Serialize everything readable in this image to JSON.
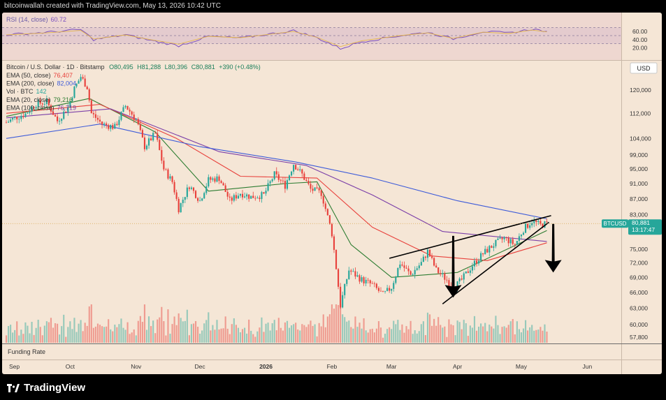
{
  "header": {
    "attribution": "bitcoinwallah created with TradingView.com, May 13, 2026 10:42 UTC"
  },
  "footer": {
    "brand": "TradingView"
  },
  "currency_label": "USD",
  "price_tag": {
    "symbol": "BTCUSD",
    "price": "80,881",
    "countdown": "13:17:47"
  },
  "rsi_panel": {
    "label": "RSI (14, close)",
    "value": "60.72",
    "ticks": [
      "60.00",
      "40.00",
      "20.00"
    ]
  },
  "legend": {
    "title": "Bitcoin / U.S. Dollar · 1D · Bitstamp",
    "ohlc": {
      "open": "O80,495",
      "high": "H81,288",
      "low": "L80,396",
      "close": "C80,881",
      "change": "+390 (+0.48%)"
    },
    "rows": [
      {
        "label": "EMA (50, close)",
        "value": "76,407",
        "color": "#e8413c"
      },
      {
        "label": "EMA (200, close)",
        "value": "82,004",
        "color": "#3d5bd9"
      },
      {
        "label": "Vol · BTC",
        "value": "142",
        "color": "#26a69a"
      },
      {
        "label": "EMA (20, close)",
        "value": "79,216",
        "color": "#2e7d32"
      },
      {
        "label": "EMA (100, close)",
        "value": "76,719",
        "color": "#7b3fa8"
      }
    ]
  },
  "funding_label": "Funding Rate",
  "chart_data": {
    "type": "candlestick",
    "price_axis": {
      "ticks": [
        120000,
        112000,
        104000,
        99000,
        95000,
        91000,
        87000,
        83000,
        79000,
        75000,
        72000,
        69000,
        66000,
        63000,
        60000,
        57800
      ],
      "tick_labels": [
        "120,000",
        "112,000",
        "104,000",
        "99,000",
        "95,000",
        "91,000",
        "87,000",
        "83,000",
        "79,000",
        "75,000",
        "72,000",
        "69,000",
        "66,000",
        "63,000",
        "60,000",
        "57,800"
      ],
      "scale": "log",
      "range": [
        57000,
        130000
      ]
    },
    "time_axis": {
      "labels": [
        "Sep",
        "Oct",
        "Nov",
        "Dec",
        "2026",
        "Feb",
        "Mar",
        "Apr",
        "May",
        "Jun"
      ],
      "label_dates": [
        "2025-09-01",
        "2025-10-01",
        "2025-11-01",
        "2025-12-01",
        "2026-01-01",
        "2026-02-01",
        "2026-03-01",
        "2026-04-01",
        "2026-05-01",
        "2026-06-01"
      ],
      "range": [
        "2025-09-01",
        "2026-06-15"
      ]
    },
    "close_series": [
      {
        "date": "2025-09-01",
        "close": 109000
      },
      {
        "date": "2025-09-05",
        "close": 110500
      },
      {
        "date": "2025-09-10",
        "close": 111800
      },
      {
        "date": "2025-09-15",
        "close": 115200
      },
      {
        "date": "2025-09-20",
        "close": 115800
      },
      {
        "date": "2025-09-25",
        "close": 109500
      },
      {
        "date": "2025-09-30",
        "close": 114000
      },
      {
        "date": "2025-10-03",
        "close": 120500
      },
      {
        "date": "2025-10-06",
        "close": 124800
      },
      {
        "date": "2025-10-09",
        "close": 121000
      },
      {
        "date": "2025-10-11",
        "close": 112000
      },
      {
        "date": "2025-10-16",
        "close": 108500
      },
      {
        "date": "2025-10-22",
        "close": 107500
      },
      {
        "date": "2025-10-27",
        "close": 114500
      },
      {
        "date": "2025-11-01",
        "close": 110000
      },
      {
        "date": "2025-11-05",
        "close": 101500
      },
      {
        "date": "2025-11-10",
        "close": 105500
      },
      {
        "date": "2025-11-14",
        "close": 95000
      },
      {
        "date": "2025-11-18",
        "close": 91500
      },
      {
        "date": "2025-11-21",
        "close": 84500
      },
      {
        "date": "2025-11-26",
        "close": 90500
      },
      {
        "date": "2025-12-01",
        "close": 86500
      },
      {
        "date": "2025-12-05",
        "close": 92000
      },
      {
        "date": "2025-12-10",
        "close": 92500
      },
      {
        "date": "2025-12-15",
        "close": 86500
      },
      {
        "date": "2025-12-20",
        "close": 88500
      },
      {
        "date": "2025-12-25",
        "close": 87500
      },
      {
        "date": "2025-12-31",
        "close": 88000
      },
      {
        "date": "2026-01-05",
        "close": 93500
      },
      {
        "date": "2026-01-10",
        "close": 90500
      },
      {
        "date": "2026-01-14",
        "close": 96500
      },
      {
        "date": "2026-01-18",
        "close": 93500
      },
      {
        "date": "2026-01-22",
        "close": 89500
      },
      {
        "date": "2026-01-27",
        "close": 88500
      },
      {
        "date": "2026-02-01",
        "close": 78500
      },
      {
        "date": "2026-02-05",
        "close": 63500
      },
      {
        "date": "2026-02-09",
        "close": 70500
      },
      {
        "date": "2026-02-15",
        "close": 68500
      },
      {
        "date": "2026-02-20",
        "close": 67500
      },
      {
        "date": "2026-02-25",
        "close": 65500
      },
      {
        "date": "2026-03-01",
        "close": 67000
      },
      {
        "date": "2026-03-05",
        "close": 72000
      },
      {
        "date": "2026-03-10",
        "close": 69500
      },
      {
        "date": "2026-03-15",
        "close": 72000
      },
      {
        "date": "2026-03-18",
        "close": 74500
      },
      {
        "date": "2026-03-22",
        "close": 70500
      },
      {
        "date": "2026-03-27",
        "close": 68500
      },
      {
        "date": "2026-03-30",
        "close": 66800
      },
      {
        "date": "2026-04-03",
        "close": 68500
      },
      {
        "date": "2026-04-08",
        "close": 71500
      },
      {
        "date": "2026-04-13",
        "close": 74000
      },
      {
        "date": "2026-04-18",
        "close": 76000
      },
      {
        "date": "2026-04-23",
        "close": 77500
      },
      {
        "date": "2026-04-28",
        "close": 76000
      },
      {
        "date": "2026-05-02",
        "close": 79500
      },
      {
        "date": "2026-05-06",
        "close": 81500
      },
      {
        "date": "2026-05-10",
        "close": 80500
      },
      {
        "date": "2026-05-13",
        "close": 80881
      }
    ],
    "ema_series": [
      {
        "name": "EMA (20, close)",
        "color": "#2e7d32",
        "points": [
          {
            "date": "2025-09-01",
            "value": 111000
          },
          {
            "date": "2025-10-10",
            "value": 117000
          },
          {
            "date": "2025-11-10",
            "value": 106000
          },
          {
            "date": "2025-12-05",
            "value": 89000
          },
          {
            "date": "2026-01-10",
            "value": 91000
          },
          {
            "date": "2026-01-25",
            "value": 91500
          },
          {
            "date": "2026-02-10",
            "value": 76000
          },
          {
            "date": "2026-03-01",
            "value": 69000
          },
          {
            "date": "2026-04-01",
            "value": 70000
          },
          {
            "date": "2026-05-13",
            "value": 79216
          }
        ]
      },
      {
        "name": "EMA (50, close)",
        "color": "#e8413c",
        "points": [
          {
            "date": "2025-09-01",
            "value": 112000
          },
          {
            "date": "2025-10-15",
            "value": 115000
          },
          {
            "date": "2025-11-20",
            "value": 104000
          },
          {
            "date": "2025-12-20",
            "value": 93000
          },
          {
            "date": "2026-01-25",
            "value": 92500
          },
          {
            "date": "2026-02-20",
            "value": 80000
          },
          {
            "date": "2026-03-20",
            "value": 73500
          },
          {
            "date": "2026-04-15",
            "value": 72500
          },
          {
            "date": "2026-05-13",
            "value": 76407
          }
        ]
      },
      {
        "name": "EMA (100, close)",
        "color": "#7b3fa8",
        "points": [
          {
            "date": "2025-09-01",
            "value": 110500
          },
          {
            "date": "2025-10-20",
            "value": 113500
          },
          {
            "date": "2025-12-10",
            "value": 100000
          },
          {
            "date": "2026-01-20",
            "value": 96000
          },
          {
            "date": "2026-02-20",
            "value": 88000
          },
          {
            "date": "2026-03-25",
            "value": 79000
          },
          {
            "date": "2026-05-13",
            "value": 76719
          }
        ]
      },
      {
        "name": "EMA (200, close)",
        "color": "#3d5bd9",
        "points": [
          {
            "date": "2025-09-01",
            "value": 104000
          },
          {
            "date": "2025-10-15",
            "value": 108500
          },
          {
            "date": "2025-12-01",
            "value": 101500
          },
          {
            "date": "2026-01-15",
            "value": 97000
          },
          {
            "date": "2026-02-20",
            "value": 92500
          },
          {
            "date": "2026-04-01",
            "value": 86500
          },
          {
            "date": "2026-05-13",
            "value": 82004
          }
        ]
      }
    ],
    "annotations": {
      "rising_wedge_upper": [
        {
          "date": "2026-02-28",
          "value": 73000
        },
        {
          "date": "2026-05-15",
          "value": 82800
        }
      ],
      "rising_wedge_lower": [
        {
          "date": "2026-03-25",
          "value": 63800
        },
        {
          "date": "2026-05-14",
          "value": 81200
        }
      ],
      "arrows": [
        {
          "date": "2026-03-30",
          "value_top": 78000,
          "value_bottom": 65000,
          "direction": "down"
        },
        {
          "date": "2026-05-16",
          "value_top": 80800,
          "value_bottom": 70000,
          "direction": "down"
        }
      ]
    },
    "rsi": {
      "levels": [
        70,
        50,
        30
      ],
      "points": [
        {
          "date": "2025-09-01",
          "v": 52
        },
        {
          "date": "2025-09-20",
          "v": 58
        },
        {
          "date": "2025-10-06",
          "v": 65
        },
        {
          "date": "2025-10-12",
          "v": 40
        },
        {
          "date": "2025-10-27",
          "v": 52
        },
        {
          "date": "2025-11-08",
          "v": 38
        },
        {
          "date": "2025-11-21",
          "v": 25
        },
        {
          "date": "2025-12-05",
          "v": 48
        },
        {
          "date": "2025-12-20",
          "v": 44
        },
        {
          "date": "2026-01-14",
          "v": 62
        },
        {
          "date": "2026-01-25",
          "v": 45
        },
        {
          "date": "2026-02-05",
          "v": 18
        },
        {
          "date": "2026-02-15",
          "v": 35
        },
        {
          "date": "2026-03-05",
          "v": 50
        },
        {
          "date": "2026-03-18",
          "v": 58
        },
        {
          "date": "2026-03-30",
          "v": 42
        },
        {
          "date": "2026-04-13",
          "v": 60
        },
        {
          "date": "2026-04-25",
          "v": 56
        },
        {
          "date": "2026-05-06",
          "v": 66
        },
        {
          "date": "2026-05-13",
          "v": 60.72
        }
      ]
    }
  }
}
